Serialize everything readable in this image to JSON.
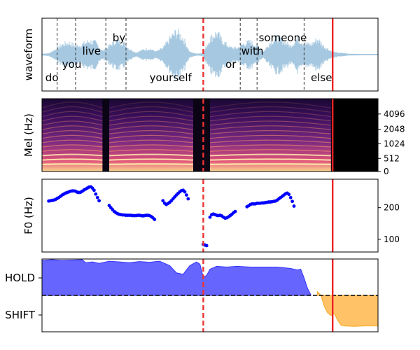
{
  "chart_data": [
    {
      "type": "line",
      "panel": "waveform",
      "ylabel": "waveform",
      "xlim": [
        0,
        1
      ],
      "colors": {
        "wave": "#a6c8e0",
        "word_line": "#333333",
        "cut": "#ee3333",
        "end": "#ee2222"
      },
      "envelope": [
        [
          0.0,
          0.02
        ],
        [
          0.02,
          0.03
        ],
        [
          0.04,
          0.18
        ],
        [
          0.06,
          0.35
        ],
        [
          0.08,
          0.42
        ],
        [
          0.1,
          0.3
        ],
        [
          0.12,
          0.36
        ],
        [
          0.14,
          0.48
        ],
        [
          0.16,
          0.42
        ],
        [
          0.18,
          0.12
        ],
        [
          0.2,
          0.3
        ],
        [
          0.22,
          0.5
        ],
        [
          0.24,
          0.45
        ],
        [
          0.26,
          0.2
        ],
        [
          0.28,
          0.06
        ],
        [
          0.3,
          0.16
        ],
        [
          0.32,
          0.2
        ],
        [
          0.34,
          0.1
        ],
        [
          0.36,
          0.22
        ],
        [
          0.38,
          0.55
        ],
        [
          0.4,
          0.82
        ],
        [
          0.42,
          0.6
        ],
        [
          0.44,
          0.08
        ],
        [
          0.46,
          0.02
        ],
        [
          0.48,
          0.04
        ],
        [
          0.5,
          0.58
        ],
        [
          0.52,
          0.78
        ],
        [
          0.54,
          0.45
        ],
        [
          0.56,
          0.25
        ],
        [
          0.58,
          0.22
        ],
        [
          0.6,
          0.38
        ],
        [
          0.62,
          0.46
        ],
        [
          0.64,
          0.3
        ],
        [
          0.66,
          0.1
        ],
        [
          0.68,
          0.45
        ],
        [
          0.7,
          0.62
        ],
        [
          0.72,
          0.48
        ],
        [
          0.74,
          0.3
        ],
        [
          0.76,
          0.58
        ],
        [
          0.78,
          0.4
        ],
        [
          0.8,
          0.35
        ],
        [
          0.82,
          0.55
        ],
        [
          0.84,
          0.28
        ],
        [
          0.86,
          0.12
        ],
        [
          0.88,
          0.05
        ],
        [
          0.9,
          0.04
        ],
        [
          0.91,
          0.02
        ],
        [
          0.95,
          0.01
        ],
        [
          1.0,
          0.01
        ]
      ],
      "words": [
        {
          "text": "do",
          "x": 0.01,
          "row": "bottom"
        },
        {
          "text": "you",
          "x": 0.06,
          "row": "low"
        },
        {
          "text": "live",
          "x": 0.12,
          "row": "mid"
        },
        {
          "text": "by",
          "x": 0.21,
          "row": "top"
        },
        {
          "text": "yourself",
          "x": 0.32,
          "row": "bottom"
        },
        {
          "text": "or",
          "x": 0.546,
          "row": "low"
        },
        {
          "text": "with",
          "x": 0.593,
          "row": "mid"
        },
        {
          "text": "someone",
          "x": 0.645,
          "row": "top"
        },
        {
          "text": "else",
          "x": 0.8,
          "row": "bottom"
        }
      ],
      "word_boundaries": [
        0.045,
        0.1,
        0.19,
        0.25,
        0.59,
        0.64,
        0.78
      ],
      "cut_x": 0.48,
      "end_x": 0.865
    },
    {
      "type": "heatmap",
      "panel": "mel",
      "ylabel": "Mel (Hz)",
      "ytick_labels": [
        "0",
        "512",
        "1024",
        "2048",
        "4096"
      ],
      "yticks_frac": [
        0.0,
        0.18,
        0.38,
        0.58,
        0.79
      ],
      "xlim": [
        0,
        1
      ],
      "speech_segments": [
        [
          0.0,
          0.18
        ],
        [
          0.2,
          0.45
        ],
        [
          0.5,
          0.86
        ]
      ],
      "cut_x": 0.48,
      "end_x": 0.865
    },
    {
      "type": "scatter",
      "panel": "f0",
      "ylabel": "F0 (Hz)",
      "yticks": [
        100,
        200
      ],
      "ylim": [
        60,
        290
      ],
      "xlim": [
        0,
        1
      ],
      "color": "#0000ff",
      "points": [
        [
          0.02,
          221
        ],
        [
          0.025,
          222
        ],
        [
          0.03,
          223
        ],
        [
          0.035,
          224
        ],
        [
          0.04,
          226
        ],
        [
          0.045,
          229
        ],
        [
          0.05,
          232
        ],
        [
          0.055,
          236
        ],
        [
          0.06,
          240
        ],
        [
          0.065,
          243
        ],
        [
          0.07,
          246
        ],
        [
          0.075,
          248
        ],
        [
          0.08,
          250
        ],
        [
          0.085,
          252
        ],
        [
          0.09,
          253
        ],
        [
          0.095,
          253
        ],
        [
          0.1,
          252
        ],
        [
          0.105,
          249
        ],
        [
          0.11,
          248
        ],
        [
          0.115,
          249
        ],
        [
          0.12,
          252
        ],
        [
          0.125,
          256
        ],
        [
          0.13,
          259
        ],
        [
          0.135,
          262
        ],
        [
          0.14,
          265
        ],
        [
          0.145,
          266
        ],
        [
          0.15,
          262
        ],
        [
          0.155,
          255
        ],
        [
          0.16,
          243
        ],
        [
          0.165,
          232
        ],
        [
          0.17,
          222
        ],
        [
          0.2,
          207
        ],
        [
          0.205,
          200
        ],
        [
          0.21,
          194
        ],
        [
          0.215,
          188
        ],
        [
          0.22,
          184
        ],
        [
          0.225,
          181
        ],
        [
          0.23,
          179
        ],
        [
          0.235,
          178
        ],
        [
          0.24,
          177
        ],
        [
          0.245,
          177
        ],
        [
          0.25,
          176
        ],
        [
          0.255,
          176
        ],
        [
          0.26,
          176
        ],
        [
          0.265,
          176
        ],
        [
          0.27,
          175
        ],
        [
          0.275,
          175
        ],
        [
          0.28,
          175
        ],
        [
          0.285,
          176
        ],
        [
          0.29,
          176
        ],
        [
          0.295,
          175
        ],
        [
          0.3,
          174
        ],
        [
          0.305,
          175
        ],
        [
          0.31,
          176
        ],
        [
          0.315,
          176
        ],
        [
          0.32,
          175
        ],
        [
          0.325,
          172
        ],
        [
          0.33,
          168
        ],
        [
          0.335,
          163
        ],
        [
          0.36,
          222
        ],
        [
          0.365,
          214
        ],
        [
          0.37,
          210
        ],
        [
          0.375,
          213
        ],
        [
          0.38,
          217
        ],
        [
          0.385,
          222
        ],
        [
          0.39,
          228
        ],
        [
          0.395,
          234
        ],
        [
          0.4,
          240
        ],
        [
          0.405,
          245
        ],
        [
          0.41,
          250
        ],
        [
          0.415,
          254
        ],
        [
          0.42,
          255
        ],
        [
          0.425,
          250
        ],
        [
          0.43,
          240
        ],
        [
          0.435,
          228
        ],
        [
          0.48,
          84
        ],
        [
          0.485,
          82
        ],
        [
          0.49,
          80
        ],
        [
          0.5,
          170
        ],
        [
          0.505,
          178
        ],
        [
          0.51,
          180
        ],
        [
          0.515,
          178
        ],
        [
          0.52,
          176
        ],
        [
          0.525,
          175
        ],
        [
          0.53,
          176
        ],
        [
          0.535,
          174
        ],
        [
          0.54,
          170
        ],
        [
          0.545,
          167
        ],
        [
          0.55,
          168
        ],
        [
          0.555,
          171
        ],
        [
          0.56,
          175
        ],
        [
          0.565,
          179
        ],
        [
          0.57,
          184
        ],
        [
          0.575,
          188
        ],
        [
          0.61,
          203
        ],
        [
          0.615,
          206
        ],
        [
          0.62,
          210
        ],
        [
          0.625,
          212
        ],
        [
          0.63,
          212
        ],
        [
          0.635,
          212
        ],
        [
          0.64,
          214
        ],
        [
          0.645,
          214
        ],
        [
          0.65,
          214
        ],
        [
          0.655,
          215
        ],
        [
          0.66,
          215
        ],
        [
          0.665,
          216
        ],
        [
          0.67,
          217
        ],
        [
          0.675,
          218
        ],
        [
          0.68,
          218
        ],
        [
          0.685,
          219
        ],
        [
          0.69,
          220
        ],
        [
          0.695,
          221
        ],
        [
          0.7,
          224
        ],
        [
          0.705,
          228
        ],
        [
          0.71,
          232
        ],
        [
          0.715,
          236
        ],
        [
          0.72,
          240
        ],
        [
          0.725,
          244
        ],
        [
          0.73,
          246
        ],
        [
          0.735,
          242
        ],
        [
          0.74,
          232
        ],
        [
          0.745,
          220
        ],
        [
          0.75,
          205
        ]
      ],
      "cut_x": 0.48,
      "end_x": 0.865
    },
    {
      "type": "area",
      "panel": "vad",
      "categories": [
        "HOLD",
        "SHIFT"
      ],
      "ylim": [
        -1,
        1
      ],
      "xlim": [
        0,
        1
      ],
      "colors": {
        "hold": "#6666ff",
        "hold_edge": "#3333ff",
        "shift": "#ffc266",
        "shift_edge": "#f5a623"
      },
      "hold_curve": [
        [
          0.0,
          0.96
        ],
        [
          0.03,
          0.98
        ],
        [
          0.06,
          0.96
        ],
        [
          0.09,
          0.97
        ],
        [
          0.12,
          0.98
        ],
        [
          0.13,
          0.9
        ],
        [
          0.15,
          0.92
        ],
        [
          0.17,
          0.88
        ],
        [
          0.2,
          0.94
        ],
        [
          0.23,
          0.92
        ],
        [
          0.26,
          0.9
        ],
        [
          0.29,
          0.93
        ],
        [
          0.32,
          0.91
        ],
        [
          0.35,
          0.94
        ],
        [
          0.38,
          0.82
        ],
        [
          0.4,
          0.62
        ],
        [
          0.42,
          0.58
        ],
        [
          0.44,
          0.82
        ],
        [
          0.46,
          0.92
        ],
        [
          0.47,
          0.86
        ],
        [
          0.48,
          0.5
        ],
        [
          0.49,
          0.55
        ],
        [
          0.5,
          0.72
        ],
        [
          0.52,
          0.8
        ],
        [
          0.55,
          0.78
        ],
        [
          0.58,
          0.8
        ],
        [
          0.62,
          0.78
        ],
        [
          0.66,
          0.78
        ],
        [
          0.7,
          0.78
        ],
        [
          0.74,
          0.74
        ],
        [
          0.76,
          0.7
        ],
        [
          0.77,
          0.72
        ],
        [
          0.78,
          0.48
        ],
        [
          0.79,
          0.2
        ],
        [
          0.8,
          0.02
        ]
      ],
      "shift_curve": [
        [
          0.82,
          0.1
        ],
        [
          0.83,
          0.0
        ],
        [
          0.84,
          -0.3
        ],
        [
          0.85,
          -0.48
        ],
        [
          0.86,
          -0.55
        ],
        [
          0.87,
          -0.5
        ],
        [
          0.88,
          -0.68
        ],
        [
          0.89,
          -0.82
        ],
        [
          0.9,
          -0.84
        ],
        [
          0.93,
          -0.85
        ],
        [
          0.96,
          -0.84
        ],
        [
          1.0,
          -0.84
        ]
      ],
      "threshold": 0,
      "cut_x": 0.48,
      "end_x": 0.865
    }
  ]
}
